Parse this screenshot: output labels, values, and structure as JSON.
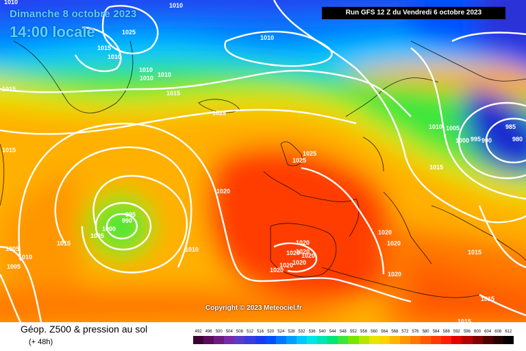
{
  "header": {
    "date_label": "Dimanche 8 octobre 2023",
    "time_label": "14:00 locale",
    "run_label": "Run GFS 12 Z du Vendredi 6 octobre 2023"
  },
  "copyright": "Copyright © 2023 Meteociel.fr",
  "legend": {
    "title": "Géop. Z500 & pression au sol",
    "subtitle": "(+ 48h)",
    "scale_values": [
      "492",
      "496",
      "500",
      "504",
      "508",
      "512",
      "516",
      "520",
      "524",
      "528",
      "532",
      "536",
      "540",
      "544",
      "548",
      "552",
      "556",
      "560",
      "564",
      "568",
      "572",
      "576",
      "580",
      "584",
      "588",
      "592",
      "596",
      "600",
      "604",
      "608",
      "612"
    ],
    "scale_colors": [
      "#3c0033",
      "#5a0b5a",
      "#6e1a80",
      "#7a2aa8",
      "#5a3ac8",
      "#3a3ae0",
      "#1a3af0",
      "#0050ff",
      "#0078ff",
      "#00a0ff",
      "#00c8ff",
      "#00e6e6",
      "#00e6b4",
      "#00e678",
      "#3ce63c",
      "#78e600",
      "#b4e600",
      "#e6e600",
      "#ffd200",
      "#ffb400",
      "#ff9600",
      "#ff7800",
      "#ff5a00",
      "#ff3c00",
      "#ff1e00",
      "#e60000",
      "#b40000",
      "#820000",
      "#500000",
      "#280000",
      "#000000"
    ]
  },
  "isobar_labels": [
    "1010",
    "1025",
    "1015",
    "1010",
    "1010",
    "1010",
    "1010",
    "1010",
    "1015",
    "1025",
    "1015",
    "1025",
    "1025",
    "1020",
    "995",
    "990",
    "1000",
    "1005",
    "1015",
    "1010",
    "1005",
    "1010",
    "1005",
    "1020",
    "1020",
    "1020",
    "1020",
    "1020",
    "1020",
    "1020",
    "1020",
    "1020",
    "1020",
    "1015",
    "1015",
    "1015",
    "1015",
    "1010",
    "1005",
    "1000",
    "995",
    "990",
    "985",
    "980",
    "1015",
    "1010"
  ]
}
